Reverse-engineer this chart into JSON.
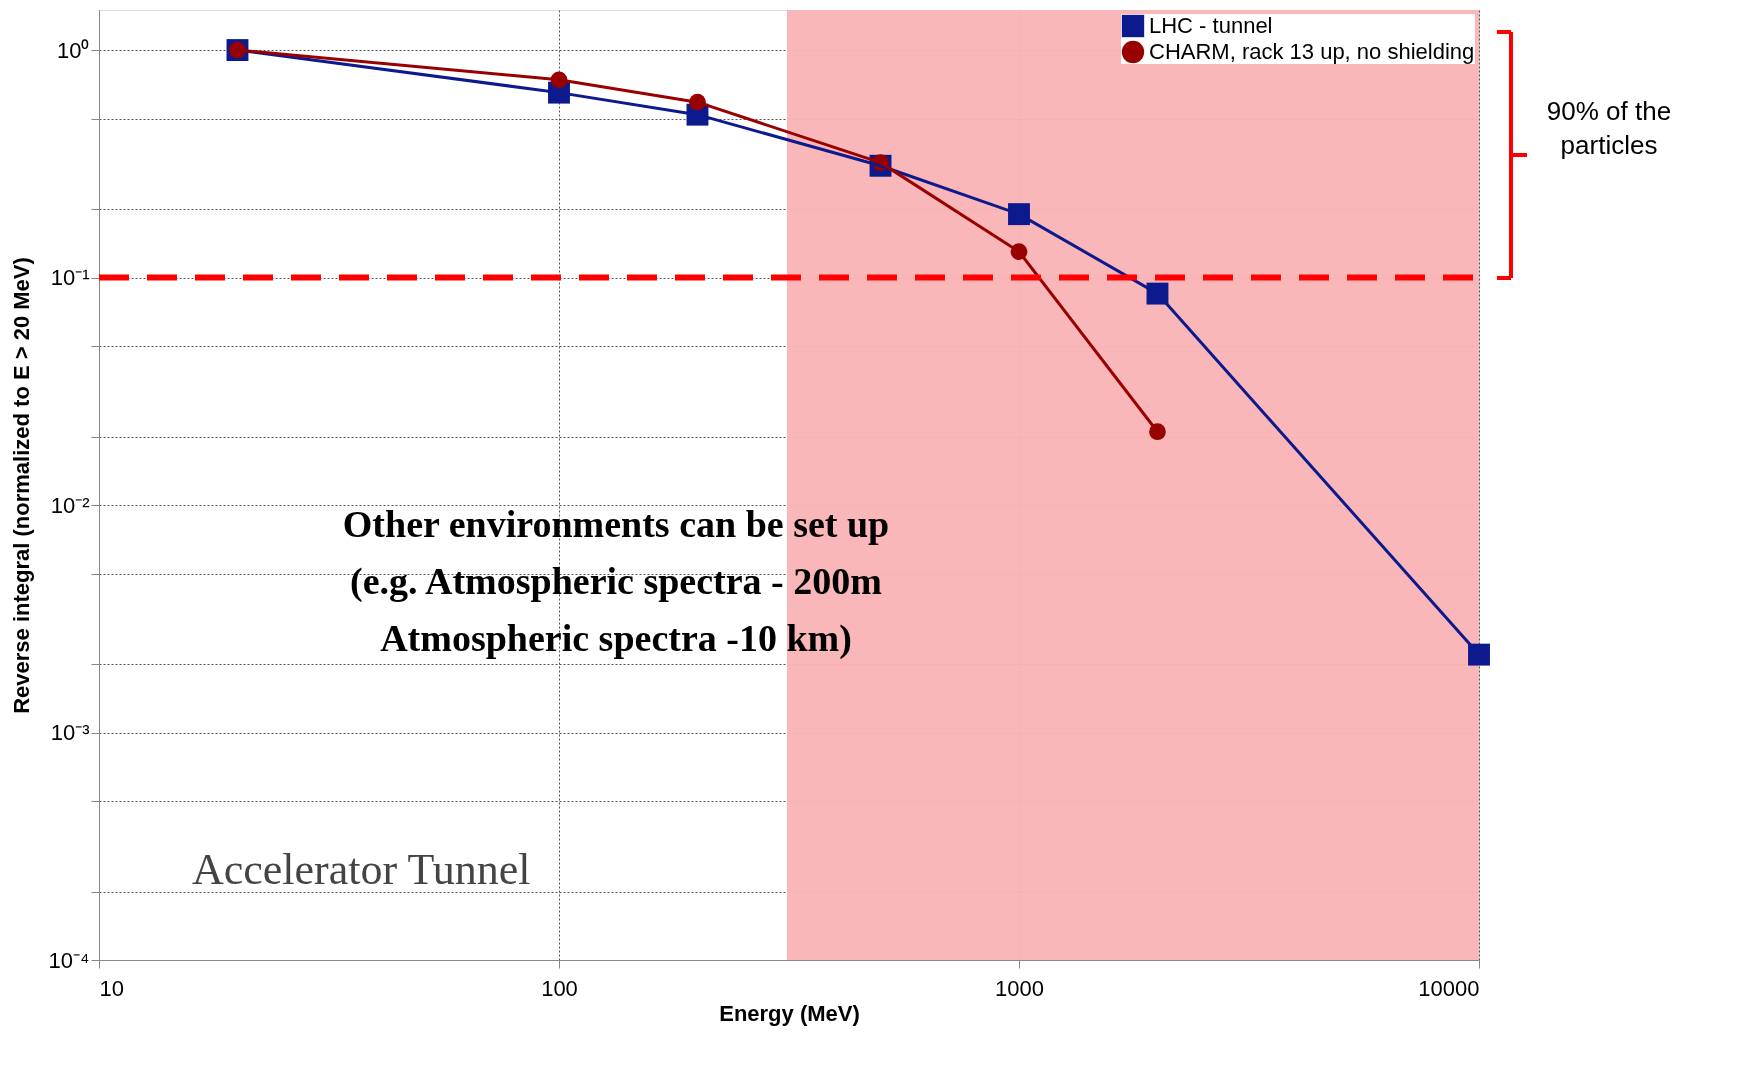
{
  "chart_data": {
    "type": "line",
    "xlabel": "Energy (MeV)",
    "ylabel": "Reverse integral (normalized to E > 20 MeV)",
    "x": [
      20,
      100,
      200,
      500,
      1000,
      2000,
      10000
    ],
    "series": [
      {
        "name": "LHC - tunnel",
        "color": "#0c1a8e",
        "marker": "square",
        "values": [
          1.0,
          0.65,
          0.52,
          0.31,
          0.19,
          0.085,
          0.0022
        ]
      },
      {
        "name": "CHARM, rack 13 up, no shielding",
        "color": "#990000",
        "marker": "circle",
        "values": [
          1.0,
          0.74,
          0.59,
          0.32,
          0.13,
          0.021,
          null
        ]
      }
    ],
    "log": "xy",
    "xlim": [
      10,
      10000
    ],
    "ylim": [
      0.0001,
      1.5
    ],
    "xticks": [
      10,
      100,
      1000,
      10000
    ],
    "yticks": [
      {
        "value": 0.0001,
        "label": "10⁻⁴"
      },
      {
        "value": 0.0002,
        "label": null
      },
      {
        "value": 0.0005,
        "label": null
      },
      {
        "value": 0.001,
        "label": "10⁻³"
      },
      {
        "value": 0.002,
        "label": null
      },
      {
        "value": 0.005,
        "label": null
      },
      {
        "value": 0.01,
        "label": "10⁻²"
      },
      {
        "value": 0.02,
        "label": null
      },
      {
        "value": 0.05,
        "label": null
      },
      {
        "value": 0.1,
        "label": "10⁻¹"
      },
      {
        "value": 0.2,
        "label": null
      },
      {
        "value": 0.5,
        "label": null
      },
      {
        "value": 1,
        "label": "10⁰"
      }
    ],
    "grid": true,
    "legend": "top right",
    "ref_lines": [
      {
        "axis": "y",
        "value": 0.1,
        "color": "#ff0000",
        "line_style": "dashed"
      }
    ],
    "bands": [
      {
        "axis": "x",
        "from": 313,
        "to": 10000,
        "color": "#f9b3b5"
      }
    ],
    "annotations": [
      "Other environments can be set up\n(e.g. Atmospheric spectra - 200m\nAtmospheric spectra -10 km)",
      "Accelerator Tunnel",
      "90% of the\nparticles"
    ]
  }
}
